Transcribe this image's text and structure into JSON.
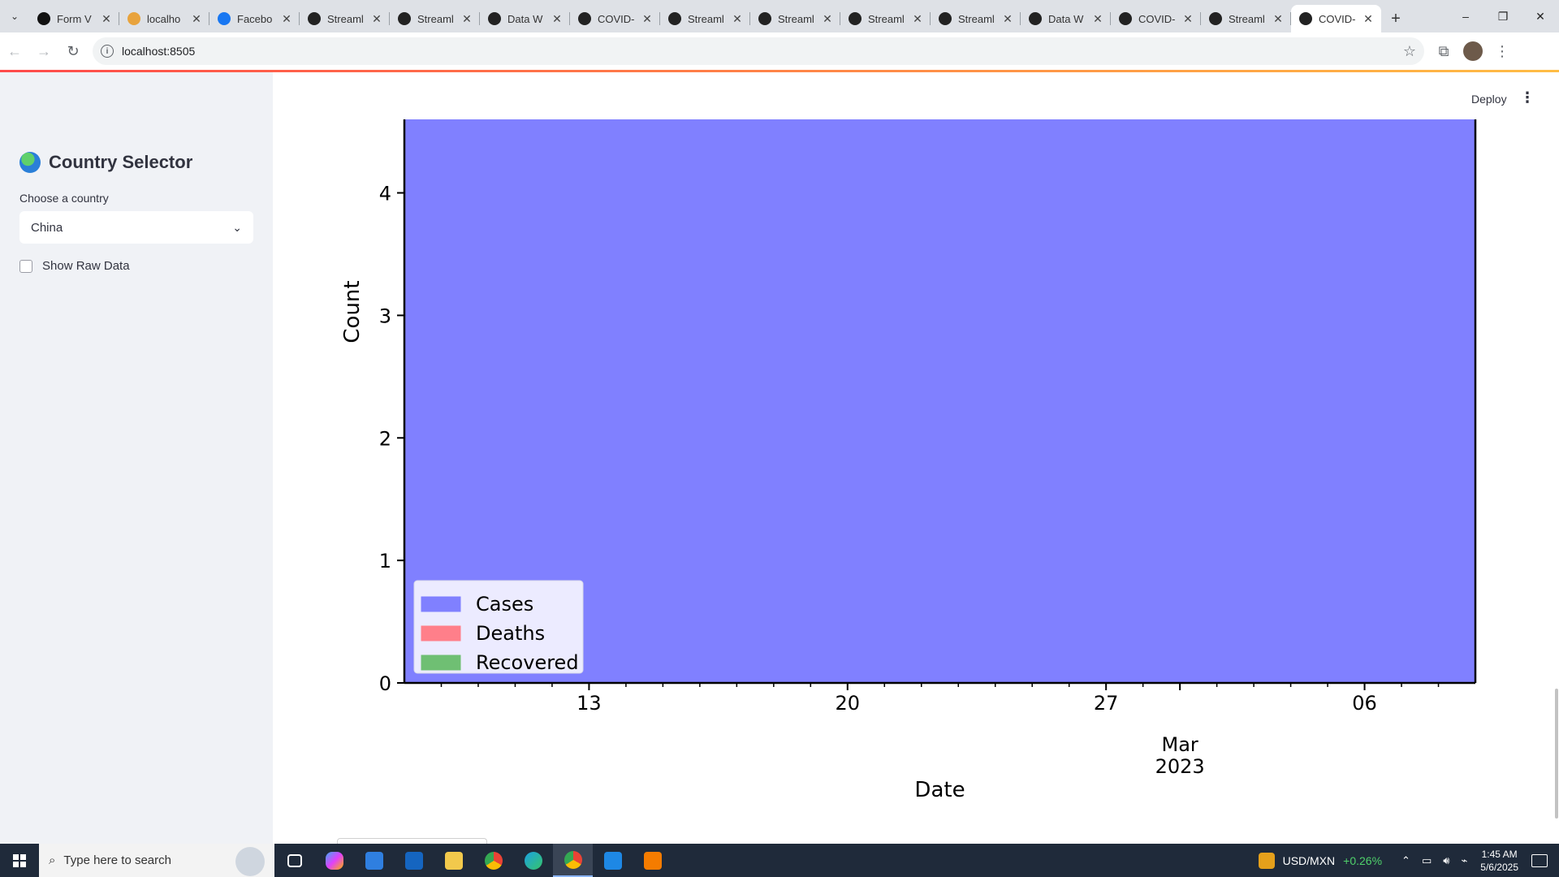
{
  "browser": {
    "tabs": [
      {
        "title": "Form V",
        "icon": "github-icon",
        "active": false
      },
      {
        "title": "localho",
        "icon": "localhost-icon",
        "active": false
      },
      {
        "title": "Facebo",
        "icon": "facebook-icon",
        "active": false
      },
      {
        "title": "Streaml",
        "icon": "streamlit-icon",
        "active": false
      },
      {
        "title": "Streaml",
        "icon": "streamlit-icon",
        "active": false
      },
      {
        "title": "Data W",
        "icon": "streamlit-icon",
        "active": false
      },
      {
        "title": "COVID-",
        "icon": "streamlit-icon",
        "active": false
      },
      {
        "title": "Streaml",
        "icon": "streamlit-icon",
        "active": false
      },
      {
        "title": "Streaml",
        "icon": "streamlit-icon",
        "active": false
      },
      {
        "title": "Streaml",
        "icon": "streamlit-icon",
        "active": false
      },
      {
        "title": "Streaml",
        "icon": "streamlit-icon",
        "active": false
      },
      {
        "title": "Data W",
        "icon": "streamlit-icon",
        "active": false
      },
      {
        "title": "COVID-",
        "icon": "streamlit-icon",
        "active": false
      },
      {
        "title": "Streaml",
        "icon": "streamlit-icon",
        "active": false
      },
      {
        "title": "COVID-",
        "icon": "streamlit-icon",
        "active": true
      }
    ],
    "url": "localhost:8505"
  },
  "sidebar": {
    "title": "Country Selector",
    "select_label": "Choose a country",
    "selected_country": "China",
    "show_raw_label": "Show Raw Data",
    "show_raw_checked": false
  },
  "header": {
    "deploy_label": "Deploy"
  },
  "chart_data": {
    "type": "area",
    "title": "",
    "xlabel": "Date",
    "ylabel": "Count",
    "x_ticks": [
      "13",
      "20",
      "27",
      "06"
    ],
    "x_month_label": "Mar",
    "x_year_label": "2023",
    "x_range": [
      "2023-02-08",
      "2023-03-09"
    ],
    "ylim_visible": [
      0,
      4.6
    ],
    "y_ticks": [
      0,
      1,
      2,
      3,
      4
    ],
    "series": [
      {
        "name": "Cases",
        "color": "#8080ff"
      },
      {
        "name": "Deaths",
        "color": "#ff7f8a"
      },
      {
        "name": "Recovered",
        "color": "#6fbf73"
      }
    ],
    "legend_position": "lower-left",
    "fill_color": "#8080ff",
    "grid": false
  },
  "taskbar": {
    "search_placeholder": "Type here to search",
    "ticker_name": "USD/MXN",
    "ticker_change": "+0.26%",
    "time": "1:45 AM",
    "date": "5/6/2025"
  }
}
